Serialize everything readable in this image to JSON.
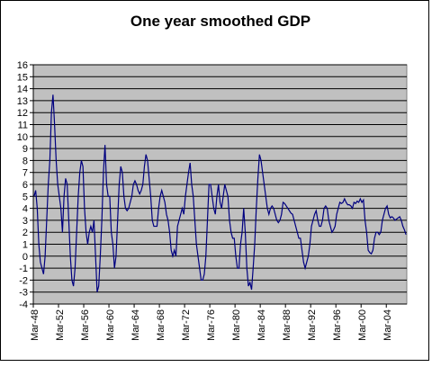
{
  "chart_data": {
    "type": "line",
    "title": "One year smoothed GDP",
    "categories": [
      "Mar-48",
      null,
      null,
      null,
      null,
      null,
      null,
      null,
      null,
      null,
      null,
      null,
      null,
      null,
      null,
      null,
      "Mar-52",
      null,
      null,
      null,
      null,
      null,
      null,
      null,
      null,
      null,
      null,
      null,
      null,
      null,
      null,
      null,
      "Mar-56",
      null,
      null,
      null,
      null,
      null,
      null,
      null,
      null,
      null,
      null,
      null,
      null,
      null,
      null,
      null,
      "Mar-60",
      null,
      null,
      null,
      null,
      null,
      null,
      null,
      null,
      null,
      null,
      null,
      null,
      null,
      null,
      null,
      "Mar-64",
      null,
      null,
      null,
      null,
      null,
      null,
      null,
      null,
      null,
      null,
      null,
      null,
      null,
      null,
      null,
      "Mar-68",
      null,
      null,
      null,
      null,
      null,
      null,
      null,
      null,
      null,
      null,
      null,
      null,
      null,
      null,
      null,
      "Mar-72",
      null,
      null,
      null,
      null,
      null,
      null,
      null,
      null,
      null,
      null,
      null,
      null,
      null,
      null,
      null,
      "Mar-76",
      null,
      null,
      null,
      null,
      null,
      null,
      null,
      null,
      null,
      null,
      null,
      null,
      null,
      null,
      null,
      "Mar-80",
      null,
      null,
      null,
      null,
      null,
      null,
      null,
      null,
      null,
      null,
      null,
      null,
      null,
      null,
      null,
      "Mar-84",
      null,
      null,
      null,
      null,
      null,
      null,
      null,
      null,
      null,
      null,
      null,
      null,
      null,
      null,
      null,
      "Mar-88",
      null,
      null,
      null,
      null,
      null,
      null,
      null,
      null,
      null,
      null,
      null,
      null,
      null,
      null,
      null,
      "Mar-92",
      null,
      null,
      null,
      null,
      null,
      null,
      null,
      null,
      null,
      null,
      null,
      null,
      null,
      null,
      null,
      "Mar-96",
      null,
      null,
      null,
      null,
      null,
      null,
      null,
      null,
      null,
      null,
      null,
      null,
      null,
      null,
      null,
      "Mar-00",
      null,
      null,
      null,
      null,
      null,
      null,
      null,
      null,
      null,
      null,
      null,
      null,
      null,
      null,
      null,
      "Mar-04",
      null,
      null,
      null,
      null,
      null,
      null,
      null,
      null,
      null,
      null,
      null,
      null
    ],
    "values": [
      5,
      5.5,
      4,
      1,
      -0.5,
      -1,
      -1.5,
      0,
      3,
      6,
      8,
      12,
      13.5,
      11,
      8,
      6,
      5,
      4,
      2,
      5,
      6.5,
      6,
      3,
      0,
      -2,
      -2.5,
      -1,
      2,
      5,
      7,
      8,
      7.5,
      4,
      2,
      1,
      2,
      2.5,
      2,
      3,
      0,
      -3,
      -2.5,
      0,
      3,
      7,
      9.3,
      6,
      5,
      5,
      2,
      1,
      -1,
      0,
      3,
      6,
      7.5,
      7,
      5,
      4,
      3.8,
      4,
      4.5,
      5,
      6,
      6.3,
      6,
      5.5,
      5.2,
      5.5,
      6,
      7.5,
      8.5,
      8,
      6.5,
      5,
      3,
      2.5,
      2.5,
      2.5,
      4,
      5,
      5.5,
      5,
      4.5,
      3.5,
      3,
      2,
      0.5,
      0,
      0.5,
      0,
      2.5,
      3,
      3.5,
      4,
      3.5,
      5,
      6,
      7,
      7.8,
      6,
      5,
      3,
      1,
      0,
      -1,
      -2,
      -2,
      -1.5,
      0,
      3,
      6,
      6,
      5,
      4,
      3.5,
      5,
      6,
      4.5,
      4,
      5,
      6,
      5.5,
      5,
      3,
      2,
      1.5,
      1.5,
      0,
      -1,
      -1,
      1,
      2,
      4,
      2,
      -1,
      -2.5,
      -2.2,
      -2.8,
      -1,
      1,
      4,
      6.5,
      8.5,
      8,
      7,
      6,
      5,
      4,
      3.5,
      4,
      4.2,
      4,
      3.5,
      3,
      2.8,
      3,
      3.5,
      4.5,
      4.4,
      4.2,
      4,
      3.8,
      3.6,
      3.5,
      3,
      2.5,
      2,
      1.5,
      1.5,
      0.5,
      -0.5,
      -1,
      -0.5,
      0,
      1,
      2.5,
      3,
      3.5,
      3.8,
      3,
      2.5,
      2.5,
      3,
      4,
      4.2,
      4,
      3,
      2.5,
      2,
      2.2,
      2.5,
      3.5,
      4,
      4.5,
      4.4,
      4.5,
      4.8,
      4.5,
      4.3,
      4.3,
      4.2,
      4,
      4.5,
      4.4,
      4.6,
      4.5,
      4.8,
      4.5,
      4.7,
      3,
      2,
      0.5,
      0.3,
      0.2,
      0.5,
      1.5,
      2,
      2,
      1.8,
      2,
      3,
      3.5,
      4,
      4.2,
      3.5,
      3.2,
      3.3,
      3.2,
      3,
      3.1,
      3.2,
      3.3,
      3,
      2.5,
      2.2,
      1.8
    ],
    "color": "#000080",
    "ylim": [
      -4,
      16
    ],
    "yticks": [
      -4,
      -3,
      -2,
      -1,
      0,
      1,
      2,
      3,
      4,
      5,
      6,
      7,
      8,
      9,
      10,
      11,
      12,
      13,
      14,
      15,
      16
    ],
    "grid": true
  }
}
